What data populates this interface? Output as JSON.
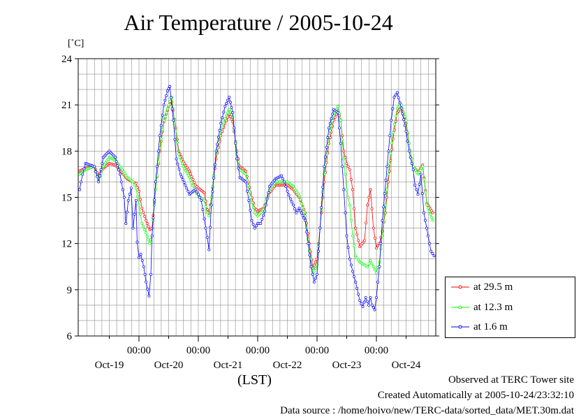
{
  "title": "Air Temperature / 2005-10-24",
  "unit_label": "[˚C]",
  "x_axis_label": "(LST)",
  "footer": {
    "observed": "Observed at TERC Tower site",
    "created": "Created Automatically at 2005-10-24/23:32:10",
    "source": "Data source : /home/hoivo/new/TERC-data/sorted_data/MET.30m.dat"
  },
  "chart_data": {
    "type": "line",
    "title": "Air Temperature / 2005-10-24",
    "ylabel": "[˚C]",
    "xlabel": "(LST)",
    "ylim": [
      6,
      24
    ],
    "yticks": [
      "6",
      "9",
      "12",
      "15",
      "18",
      "21",
      "24"
    ],
    "xlim": [
      0,
      6
    ],
    "time_tick_label": "00:00",
    "day_labels": [
      "Oct-19",
      "Oct-20",
      "Oct-21",
      "Oct-22",
      "Oct-23",
      "Oct-24"
    ],
    "grid": true,
    "legend_position": "right",
    "x_unit": "days from start of plot (day boundaries at 00:00 ticks)",
    "series": [
      {
        "name": "at 29.5 m",
        "color": "#ff0000",
        "points": [
          [
            0.0,
            16.7
          ],
          [
            0.1,
            16.9
          ],
          [
            0.25,
            17.0
          ],
          [
            0.32,
            16.4
          ],
          [
            0.4,
            16.9
          ],
          [
            0.5,
            17.2
          ],
          [
            0.6,
            17.1
          ],
          [
            0.7,
            16.7
          ],
          [
            0.8,
            16.2
          ],
          [
            0.9,
            16.0
          ],
          [
            0.95,
            15.9
          ],
          [
            1.0,
            15.4
          ],
          [
            1.05,
            14.3
          ],
          [
            1.12,
            13.5
          ],
          [
            1.18,
            12.9
          ],
          [
            1.22,
            13.0
          ],
          [
            1.28,
            15.5
          ],
          [
            1.35,
            18.0
          ],
          [
            1.42,
            19.9
          ],
          [
            1.5,
            20.9
          ],
          [
            1.55,
            21.2
          ],
          [
            1.62,
            19.5
          ],
          [
            1.67,
            18.0
          ],
          [
            1.75,
            17.3
          ],
          [
            1.85,
            16.7
          ],
          [
            1.95,
            15.8
          ],
          [
            2.0,
            15.6
          ],
          [
            2.1,
            15.3
          ],
          [
            2.15,
            14.2
          ],
          [
            2.18,
            14.0
          ],
          [
            2.22,
            15.0
          ],
          [
            2.3,
            17.5
          ],
          [
            2.38,
            19.0
          ],
          [
            2.45,
            19.8
          ],
          [
            2.52,
            20.4
          ],
          [
            2.58,
            19.9
          ],
          [
            2.65,
            18.0
          ],
          [
            2.7,
            17.0
          ],
          [
            2.8,
            16.7
          ],
          [
            2.88,
            15.3
          ],
          [
            2.95,
            14.3
          ],
          [
            3.0,
            14.1
          ],
          [
            3.1,
            14.3
          ],
          [
            3.2,
            15.3
          ],
          [
            3.3,
            15.8
          ],
          [
            3.4,
            15.8
          ],
          [
            3.5,
            15.8
          ],
          [
            3.6,
            15.5
          ],
          [
            3.7,
            15.0
          ],
          [
            3.8,
            14.0
          ],
          [
            3.87,
            12.0
          ],
          [
            3.93,
            10.4
          ],
          [
            4.0,
            11.0
          ],
          [
            4.05,
            13.0
          ],
          [
            4.12,
            16.0
          ],
          [
            4.2,
            18.5
          ],
          [
            4.28,
            20.0
          ],
          [
            4.35,
            20.6
          ],
          [
            4.4,
            20.0
          ],
          [
            4.45,
            18.0
          ],
          [
            4.5,
            17.2
          ],
          [
            4.55,
            16.8
          ],
          [
            4.6,
            15.5
          ],
          [
            4.65,
            13.0
          ],
          [
            4.72,
            11.8
          ],
          [
            4.8,
            12.2
          ],
          [
            4.85,
            14.5
          ],
          [
            4.9,
            15.5
          ],
          [
            4.95,
            13.0
          ],
          [
            5.0,
            11.7
          ],
          [
            5.05,
            12.0
          ],
          [
            5.1,
            12.8
          ],
          [
            5.15,
            14.0
          ],
          [
            5.2,
            16.0
          ],
          [
            5.28,
            18.8
          ],
          [
            5.35,
            20.5
          ],
          [
            5.42,
            20.8
          ],
          [
            5.5,
            19.8
          ],
          [
            5.55,
            18.5
          ],
          [
            5.62,
            17.0
          ],
          [
            5.7,
            16.6
          ],
          [
            5.78,
            17.1
          ],
          [
            5.85,
            14.6
          ],
          [
            5.95,
            14.0
          ]
        ]
      },
      {
        "name": "at 12.3 m",
        "color": "#00ff00",
        "points": [
          [
            0.0,
            16.5
          ],
          [
            0.1,
            16.8
          ],
          [
            0.25,
            17.0
          ],
          [
            0.32,
            16.1
          ],
          [
            0.4,
            17.0
          ],
          [
            0.5,
            17.6
          ],
          [
            0.6,
            17.4
          ],
          [
            0.7,
            16.9
          ],
          [
            0.8,
            16.3
          ],
          [
            0.9,
            16.0
          ],
          [
            0.95,
            15.6
          ],
          [
            1.0,
            14.5
          ],
          [
            1.05,
            13.3
          ],
          [
            1.12,
            12.7
          ],
          [
            1.18,
            12.0
          ],
          [
            1.22,
            12.5
          ],
          [
            1.28,
            15.5
          ],
          [
            1.35,
            18.2
          ],
          [
            1.42,
            20.0
          ],
          [
            1.5,
            21.0
          ],
          [
            1.55,
            21.5
          ],
          [
            1.62,
            19.3
          ],
          [
            1.67,
            17.8
          ],
          [
            1.75,
            17.0
          ],
          [
            1.85,
            16.3
          ],
          [
            1.95,
            15.4
          ],
          [
            2.0,
            15.1
          ],
          [
            2.1,
            14.8
          ],
          [
            2.15,
            14.0
          ],
          [
            2.18,
            13.8
          ],
          [
            2.22,
            15.0
          ],
          [
            2.3,
            17.8
          ],
          [
            2.38,
            19.3
          ],
          [
            2.45,
            20.1
          ],
          [
            2.52,
            20.7
          ],
          [
            2.58,
            20.2
          ],
          [
            2.65,
            17.8
          ],
          [
            2.7,
            16.8
          ],
          [
            2.8,
            16.5
          ],
          [
            2.88,
            15.0
          ],
          [
            2.95,
            14.0
          ],
          [
            3.0,
            13.8
          ],
          [
            3.1,
            14.2
          ],
          [
            3.2,
            15.5
          ],
          [
            3.3,
            16.0
          ],
          [
            3.4,
            16.0
          ],
          [
            3.5,
            16.0
          ],
          [
            3.6,
            15.7
          ],
          [
            3.7,
            15.1
          ],
          [
            3.8,
            13.8
          ],
          [
            3.87,
            11.5
          ],
          [
            3.93,
            10.0
          ],
          [
            4.0,
            10.6
          ],
          [
            4.05,
            13.0
          ],
          [
            4.12,
            16.5
          ],
          [
            4.2,
            19.0
          ],
          [
            4.28,
            20.3
          ],
          [
            4.35,
            20.9
          ],
          [
            4.4,
            20.0
          ],
          [
            4.45,
            17.5
          ],
          [
            4.5,
            15.5
          ],
          [
            4.55,
            14.5
          ],
          [
            4.6,
            12.5
          ],
          [
            4.65,
            11.2
          ],
          [
            4.72,
            10.8
          ],
          [
            4.8,
            10.6
          ],
          [
            4.85,
            10.5
          ],
          [
            4.9,
            10.9
          ],
          [
            4.95,
            10.5
          ],
          [
            5.0,
            10.1
          ],
          [
            5.05,
            10.8
          ],
          [
            5.1,
            12.5
          ],
          [
            5.15,
            14.5
          ],
          [
            5.2,
            16.5
          ],
          [
            5.28,
            19.2
          ],
          [
            5.35,
            20.8
          ],
          [
            5.42,
            21.0
          ],
          [
            5.5,
            20.0
          ],
          [
            5.55,
            18.5
          ],
          [
            5.62,
            17.0
          ],
          [
            5.7,
            16.5
          ],
          [
            5.78,
            17.0
          ],
          [
            5.85,
            14.5
          ],
          [
            5.95,
            13.5
          ]
        ]
      },
      {
        "name": "at 1.6 m",
        "color": "#0000ff",
        "points": [
          [
            0.0,
            15.5
          ],
          [
            0.05,
            16.5
          ],
          [
            0.1,
            17.2
          ],
          [
            0.25,
            17.0
          ],
          [
            0.32,
            16.0
          ],
          [
            0.4,
            17.6
          ],
          [
            0.5,
            18.0
          ],
          [
            0.6,
            17.6
          ],
          [
            0.68,
            16.5
          ],
          [
            0.75,
            15.0
          ],
          [
            0.78,
            13.3
          ],
          [
            0.82,
            14.8
          ],
          [
            0.87,
            15.6
          ],
          [
            0.9,
            13.0
          ],
          [
            0.95,
            14.8
          ],
          [
            0.97,
            12.1
          ],
          [
            1.0,
            11.1
          ],
          [
            1.03,
            11.3
          ],
          [
            1.08,
            10.5
          ],
          [
            1.12,
            9.5
          ],
          [
            1.17,
            8.6
          ],
          [
            1.2,
            10.0
          ],
          [
            1.22,
            12.5
          ],
          [
            1.28,
            16.0
          ],
          [
            1.35,
            19.0
          ],
          [
            1.42,
            21.0
          ],
          [
            1.48,
            21.9
          ],
          [
            1.52,
            22.2
          ],
          [
            1.58,
            20.0
          ],
          [
            1.63,
            17.5
          ],
          [
            1.7,
            16.5
          ],
          [
            1.78,
            15.8
          ],
          [
            1.85,
            15.2
          ],
          [
            1.95,
            15.5
          ],
          [
            2.0,
            15.2
          ],
          [
            2.05,
            14.8
          ],
          [
            2.1,
            13.6
          ],
          [
            2.15,
            12.4
          ],
          [
            2.18,
            11.6
          ],
          [
            2.22,
            14.5
          ],
          [
            2.3,
            18.0
          ],
          [
            2.38,
            19.8
          ],
          [
            2.45,
            20.9
          ],
          [
            2.52,
            21.5
          ],
          [
            2.58,
            20.5
          ],
          [
            2.65,
            17.5
          ],
          [
            2.7,
            16.3
          ],
          [
            2.8,
            16.0
          ],
          [
            2.85,
            14.8
          ],
          [
            2.9,
            13.5
          ],
          [
            2.95,
            13.0
          ],
          [
            3.0,
            13.3
          ],
          [
            3.05,
            13.3
          ],
          [
            3.12,
            14.1
          ],
          [
            3.2,
            15.7
          ],
          [
            3.3,
            16.2
          ],
          [
            3.4,
            16.4
          ],
          [
            3.45,
            16.0
          ],
          [
            3.5,
            15.4
          ],
          [
            3.55,
            14.9
          ],
          [
            3.6,
            14.5
          ],
          [
            3.65,
            14.0
          ],
          [
            3.7,
            14.3
          ],
          [
            3.8,
            13.5
          ],
          [
            3.85,
            12.0
          ],
          [
            3.9,
            10.5
          ],
          [
            3.95,
            9.5
          ],
          [
            4.0,
            10.0
          ],
          [
            4.05,
            13.0
          ],
          [
            4.12,
            17.0
          ],
          [
            4.2,
            19.5
          ],
          [
            4.28,
            20.7
          ],
          [
            4.35,
            20.5
          ],
          [
            4.4,
            18.5
          ],
          [
            4.45,
            15.5
          ],
          [
            4.5,
            12.5
          ],
          [
            4.55,
            11.0
          ],
          [
            4.6,
            10.2
          ],
          [
            4.65,
            9.5
          ],
          [
            4.72,
            8.3
          ],
          [
            4.77,
            7.9
          ],
          [
            4.82,
            8.5
          ],
          [
            4.87,
            8.0
          ],
          [
            4.9,
            8.5
          ],
          [
            4.93,
            8.0
          ],
          [
            4.97,
            7.7
          ],
          [
            5.0,
            8.5
          ],
          [
            5.05,
            10.5
          ],
          [
            5.1,
            13.5
          ],
          [
            5.18,
            17.0
          ],
          [
            5.25,
            20.0
          ],
          [
            5.3,
            21.5
          ],
          [
            5.35,
            21.8
          ],
          [
            5.42,
            20.8
          ],
          [
            5.5,
            19.3
          ],
          [
            5.55,
            18.0
          ],
          [
            5.62,
            16.8
          ],
          [
            5.65,
            15.8
          ],
          [
            5.7,
            15.2
          ],
          [
            5.75,
            16.5
          ],
          [
            5.8,
            14.0
          ],
          [
            5.87,
            12.5
          ],
          [
            5.92,
            11.5
          ],
          [
            5.97,
            11.2
          ]
        ]
      }
    ]
  }
}
